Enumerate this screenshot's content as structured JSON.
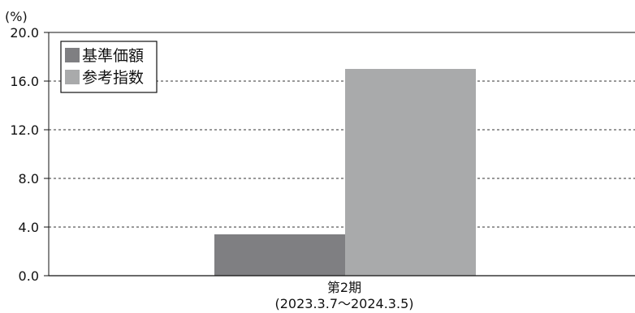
{
  "chart_data": {
    "type": "bar",
    "unit_label": "(%)",
    "categories": [
      {
        "name": "第2期",
        "period": "(2023.3.7〜2024.3.5)"
      }
    ],
    "series": [
      {
        "name": "基準価額",
        "values": [
          3.4
        ],
        "color": "#7f7f82"
      },
      {
        "name": "参考指数",
        "values": [
          17.0
        ],
        "color": "#a9aaab"
      }
    ],
    "ylim": [
      0,
      20
    ],
    "yticks": [
      "0.0",
      "4.0",
      "8.0",
      "12.0",
      "16.0",
      "20.0"
    ],
    "ytick_values": [
      0,
      4,
      8,
      12,
      16,
      20
    ],
    "grid": "dashed-horizontal",
    "legend_position": "top-left"
  }
}
